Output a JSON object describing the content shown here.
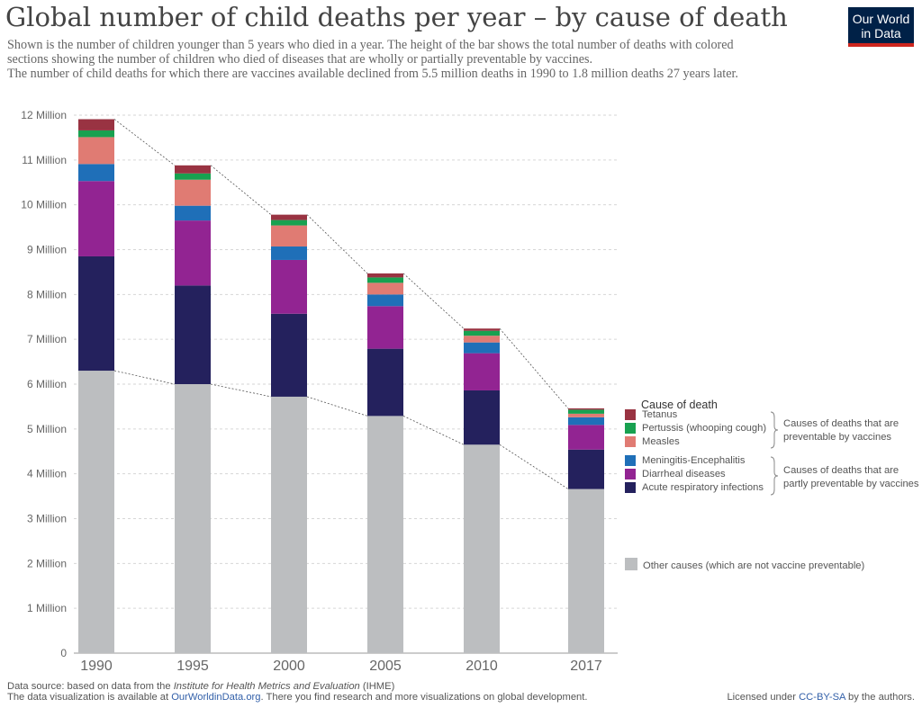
{
  "header": {
    "title": "Global number of child deaths per year – by cause of death",
    "subtitle_lines": [
      "Shown is the number of children younger than 5 years who died in a year. The height of the bar shows the total number of deaths with colored",
      "sections showing the number of children who died of diseases that are wholly or partially preventable by vaccines.",
      "The number of child deaths for which there are vaccines available declined from 5.5 million deaths in 1990 to 1.8 million deaths 27 years later."
    ]
  },
  "logo": {
    "line1": "Our World",
    "line2": "in Data"
  },
  "chart_data": {
    "type": "bar",
    "stacked": true,
    "categories": [
      "1990",
      "1995",
      "2000",
      "2005",
      "2010",
      "2017"
    ],
    "ylim": [
      0,
      12000000
    ],
    "yticks": [
      0,
      1000000,
      2000000,
      3000000,
      4000000,
      5000000,
      6000000,
      7000000,
      8000000,
      9000000,
      10000000,
      11000000,
      12000000
    ],
    "ytick_labels": [
      "0",
      "1 Million",
      "2 Million",
      "3 Million",
      "4 Million",
      "5 Million",
      "6 Million",
      "7 Million",
      "8 Million",
      "9 Million",
      "10 Million",
      "11 Million",
      "12 Million"
    ],
    "grid": true,
    "legend_title": "Cause of death",
    "legend_position": "right",
    "series": [
      {
        "name": "Other causes (which are not vaccine preventable)",
        "color": "#bcbec0",
        "values": [
          6300000,
          6000000,
          5720000,
          5290000,
          4650000,
          3660000
        ]
      },
      {
        "name": "Acute respiratory infections",
        "color": "#24215d",
        "values": [
          2550000,
          2200000,
          1850000,
          1500000,
          1210000,
          880000
        ]
      },
      {
        "name": "Diarrheal diseases",
        "color": "#922492",
        "values": [
          1680000,
          1450000,
          1200000,
          950000,
          830000,
          550000
        ]
      },
      {
        "name": "Meningitis-Encephalitis",
        "color": "#1f6fb8",
        "values": [
          380000,
          330000,
          300000,
          260000,
          240000,
          170000
        ]
      },
      {
        "name": "Measles",
        "color": "#e07b73",
        "values": [
          600000,
          580000,
          470000,
          260000,
          150000,
          80000
        ]
      },
      {
        "name": "Pertussis (whooping cough)",
        "color": "#18a150",
        "values": [
          150000,
          140000,
          120000,
          120000,
          110000,
          90000
        ]
      },
      {
        "name": "Tetanus",
        "color": "#993342",
        "values": [
          250000,
          180000,
          120000,
          90000,
          50000,
          30000
        ]
      }
    ],
    "legend_order": [
      "Tetanus",
      "Pertussis (whooping cough)",
      "Measles",
      "Meningitis-Encephalitis",
      "Diarrheal diseases",
      "Acute respiratory infections"
    ],
    "legend_groups": [
      {
        "lines": [
          "Causes of deaths that are",
          "preventable by vaccines"
        ]
      },
      {
        "lines": [
          "Causes of deaths that are",
          "partly preventable by vaccines"
        ]
      }
    ]
  },
  "footer": {
    "source_prefix": "Data source: based on data from the ",
    "source_italic": "Institute for Health Metrics and Evaluation",
    "source_suffix": " (IHME)",
    "viz_prefix": "The data visualization is available at ",
    "viz_link": "OurWorldinData.org",
    "viz_suffix": ". There you find research and more visualizations on global development.",
    "license_prefix": "Licensed under ",
    "license_link": "CC-BY-SA",
    "license_suffix": " by the authors."
  }
}
